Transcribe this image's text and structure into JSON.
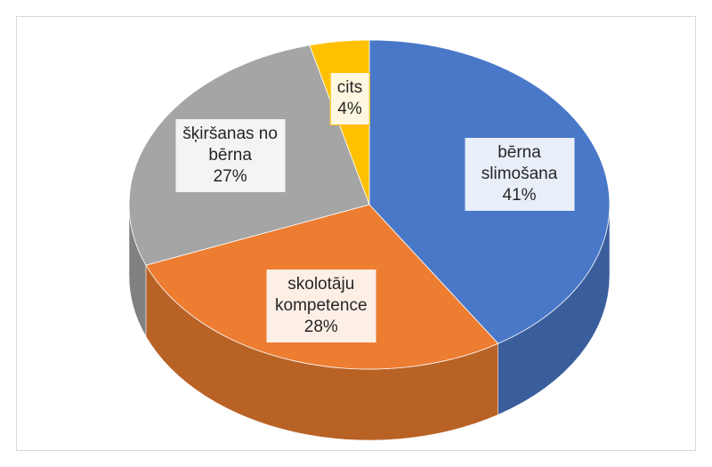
{
  "chart_data": {
    "type": "pie",
    "categories": [
      "bērna slimošana",
      "skolotāju kompetence",
      "šķiršanas no bērna",
      "cits"
    ],
    "values": [
      41,
      28,
      27,
      4
    ],
    "value_labels": [
      "41%",
      "28%",
      "27%",
      "4%"
    ],
    "colors": [
      "#4a78c8",
      "#ed7d31",
      "#a5a5a5",
      "#ffc000"
    ]
  }
}
